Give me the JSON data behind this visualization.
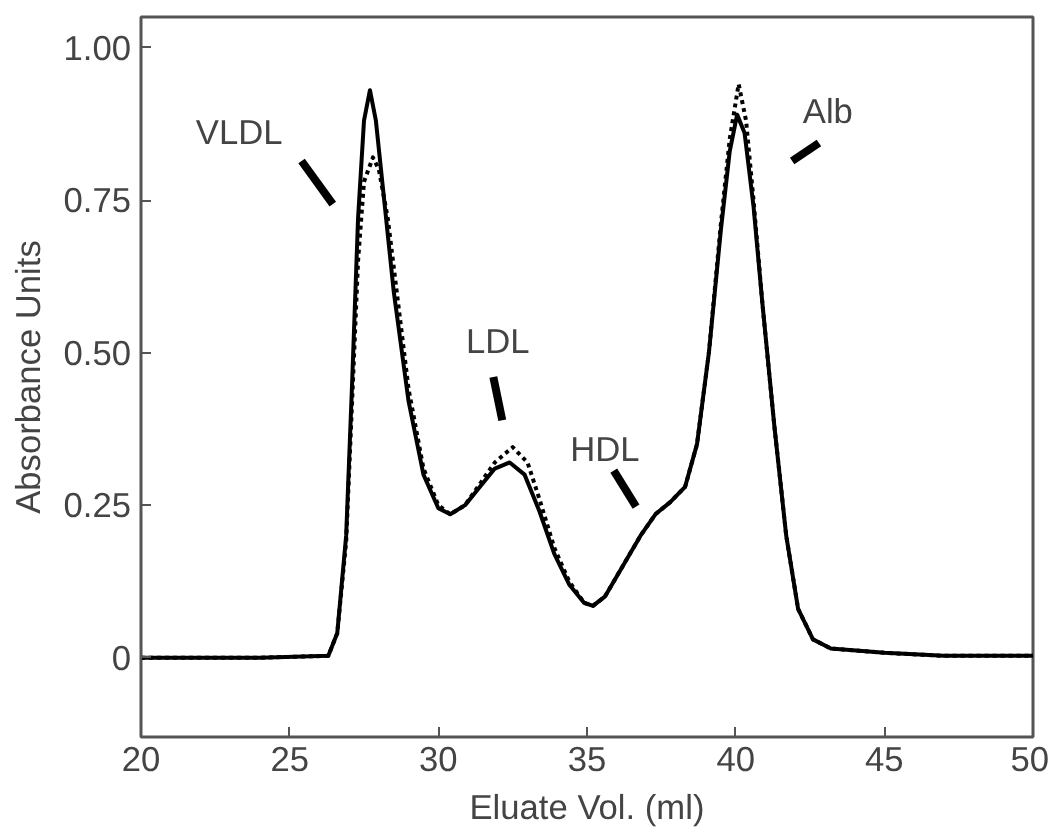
{
  "chart_data": {
    "type": "line",
    "xlabel": "Eluate Vol. (ml)",
    "ylabel": "Absorbance Units",
    "xlim": [
      20,
      50
    ],
    "xticks": [
      20,
      25,
      30,
      35,
      40,
      45,
      50
    ],
    "ylim": [
      -0.13,
      1.05
    ],
    "yticks": [
      {
        "value": 0,
        "label": "0"
      },
      {
        "value": 0.25,
        "label": "0.25"
      },
      {
        "value": 0.5,
        "label": "0.50"
      },
      {
        "value": 0.75,
        "label": "0.75"
      },
      {
        "value": 1,
        "label": "1.00"
      }
    ],
    "grid": false,
    "series": [
      {
        "color": "#000000",
        "line_style": "solid",
        "x": [
          20,
          24,
          26.3,
          26.6,
          26.9,
          27.1,
          27.3,
          27.5,
          27.7,
          27.9,
          28.2,
          28.5,
          29,
          29.5,
          30,
          30.4,
          30.9,
          31.4,
          31.9,
          32.4,
          32.9,
          33.4,
          33.9,
          34.4,
          34.9,
          35.2,
          35.6,
          36.2,
          36.8,
          37.3,
          37.8,
          38.3,
          38.7,
          39.1,
          39.5,
          39.8,
          40.05,
          40.3,
          40.6,
          40.9,
          41.3,
          41.7,
          42.1,
          42.6,
          43.2,
          45,
          47,
          50
        ],
        "values": [
          0,
          0,
          0.003,
          0.04,
          0.2,
          0.45,
          0.72,
          0.88,
          0.93,
          0.88,
          0.74,
          0.6,
          0.42,
          0.3,
          0.245,
          0.235,
          0.25,
          0.28,
          0.31,
          0.32,
          0.3,
          0.24,
          0.17,
          0.12,
          0.09,
          0.085,
          0.1,
          0.15,
          0.2,
          0.235,
          0.255,
          0.28,
          0.35,
          0.5,
          0.7,
          0.83,
          0.89,
          0.86,
          0.74,
          0.58,
          0.38,
          0.2,
          0.08,
          0.03,
          0.015,
          0.008,
          0.003,
          0.003
        ]
      },
      {
        "color": "#000000",
        "line_style": "dotted",
        "x": [
          20,
          24,
          26.3,
          26.6,
          26.9,
          27.1,
          27.3,
          27.5,
          27.8,
          28.0,
          28.3,
          28.6,
          29,
          29.5,
          30,
          30.4,
          30.9,
          31.4,
          31.9,
          32.5,
          33,
          33.4,
          33.9,
          34.4,
          34.9,
          35.2,
          35.6,
          36.2,
          36.8,
          37.3,
          37.8,
          38.3,
          38.7,
          39.1,
          39.5,
          39.8,
          40.1,
          40.35,
          40.6,
          40.9,
          41.3,
          41.7,
          42.1,
          42.6,
          43.2,
          45,
          47,
          50
        ],
        "values": [
          0,
          0,
          0.003,
          0.04,
          0.19,
          0.42,
          0.65,
          0.78,
          0.82,
          0.8,
          0.72,
          0.6,
          0.44,
          0.31,
          0.25,
          0.235,
          0.25,
          0.285,
          0.32,
          0.345,
          0.32,
          0.26,
          0.18,
          0.125,
          0.09,
          0.085,
          0.1,
          0.15,
          0.2,
          0.235,
          0.255,
          0.28,
          0.35,
          0.5,
          0.71,
          0.85,
          0.94,
          0.88,
          0.75,
          0.58,
          0.38,
          0.2,
          0.08,
          0.03,
          0.015,
          0.008,
          0.003,
          0.003
        ]
      }
    ],
    "annotations": [
      "VLDL",
      "LDL",
      "HDL",
      "Alb"
    ]
  }
}
